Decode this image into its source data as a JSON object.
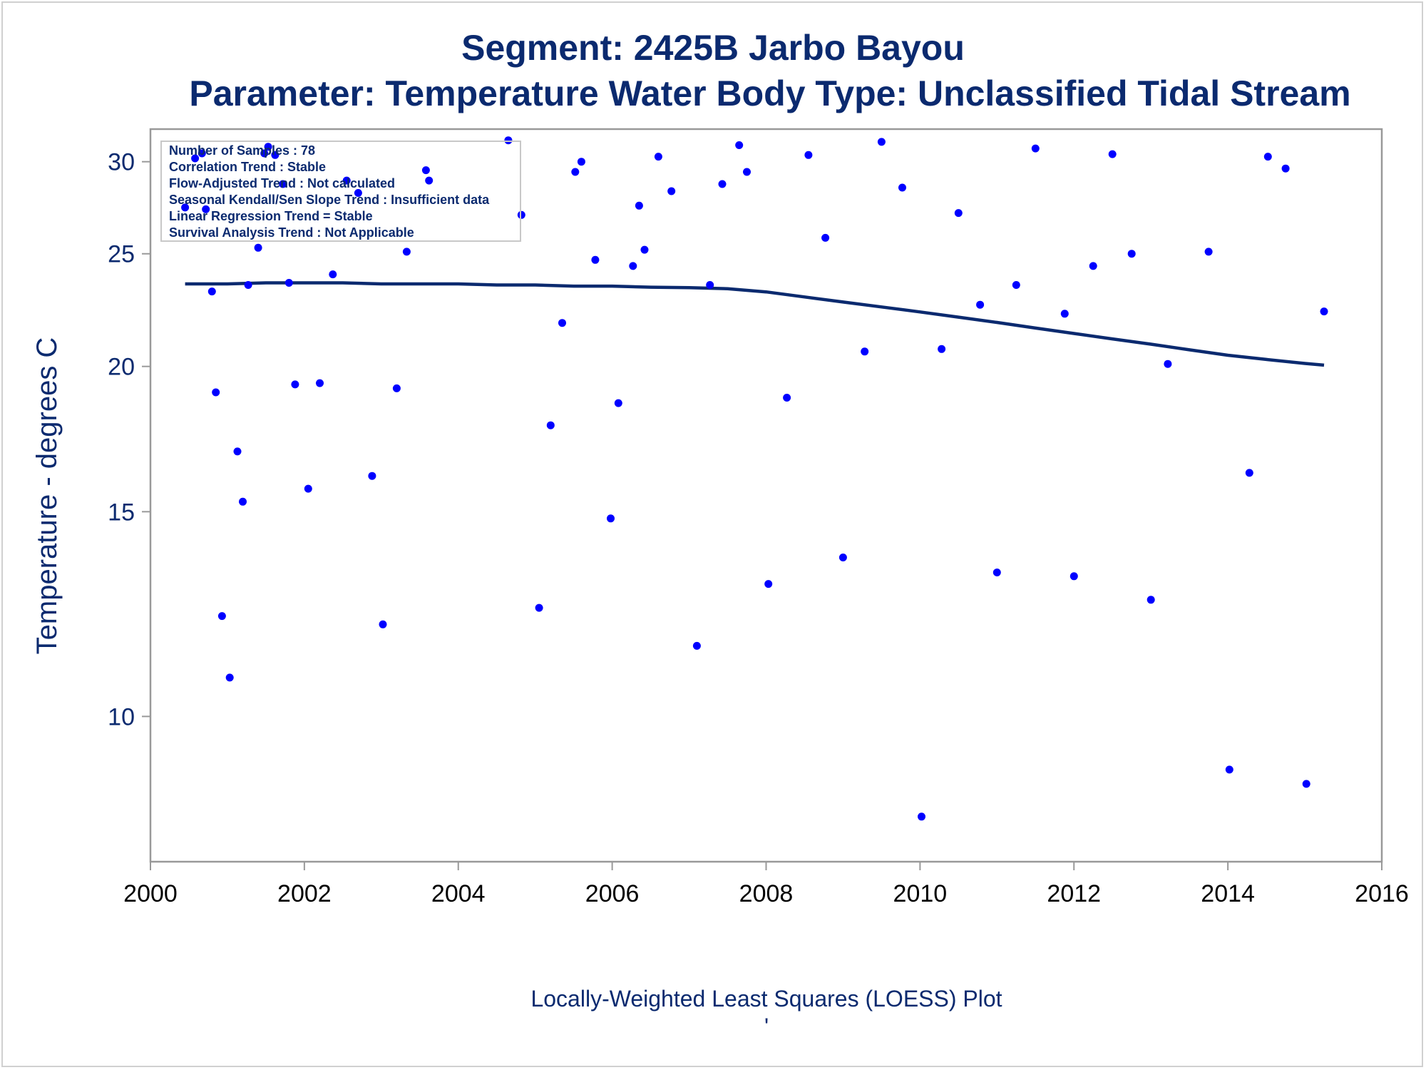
{
  "chart_data": {
    "type": "scatter",
    "title": "Segment: 2425B  Jarbo Bayou",
    "subtitle": "Parameter: Temperature   Water Body Type: Unclassified Tidal Stream",
    "xlabel": "Locally-Weighted Least Squares (LOESS) Plot",
    "ylabel": "Temperature - degrees C",
    "footnote": "'",
    "y_scale": "log",
    "xlim": [
      2000,
      2016
    ],
    "ylim": [
      7.5,
      32
    ],
    "x_ticks": [
      "2000",
      "2002",
      "2004",
      "2006",
      "2008",
      "2010",
      "2012",
      "2014",
      "2016"
    ],
    "x_tick_values": [
      2000,
      2002,
      2004,
      2006,
      2008,
      2010,
      2012,
      2014,
      2016
    ],
    "y_ticks": [
      "10",
      "15",
      "20",
      "25",
      "30"
    ],
    "y_tick_values": [
      10,
      15,
      20,
      25,
      30
    ],
    "grid": false,
    "legend_placement": "top-left",
    "annotation_lines": [
      "Number of Samples : 78",
      "Correlation Trend : Stable",
      "Flow-Adjusted Trend : Not calculated",
      "Seasonal Kendall/Sen Slope Trend : Insufficient data",
      "Linear Regression Trend = Stable",
      "Survival Analysis Trend : Not Applicable"
    ],
    "colors": {
      "points": "#0000ff",
      "loess": "#0b2a6f",
      "text": "#0b2a6f",
      "axis": "#999999"
    },
    "series": [
      {
        "kind": "points",
        "points": [
          [
            2000.45,
            27.4
          ],
          [
            2000.58,
            30.2
          ],
          [
            2000.67,
            30.5
          ],
          [
            2000.72,
            27.3
          ],
          [
            2000.8,
            23.2
          ],
          [
            2000.85,
            19.0
          ],
          [
            2000.93,
            12.2
          ],
          [
            2001.03,
            10.8
          ],
          [
            2001.13,
            16.9
          ],
          [
            2001.2,
            15.3
          ],
          [
            2001.27,
            23.5
          ],
          [
            2001.4,
            25.3
          ],
          [
            2001.48,
            30.5
          ],
          [
            2001.53,
            30.9
          ],
          [
            2001.62,
            30.4
          ],
          [
            2001.72,
            28.7
          ],
          [
            2001.8,
            23.6
          ],
          [
            2001.88,
            19.3
          ],
          [
            2002.05,
            15.7
          ],
          [
            2002.2,
            19.35
          ],
          [
            2002.37,
            24.0
          ],
          [
            2002.55,
            28.9
          ],
          [
            2002.7,
            28.2
          ],
          [
            2002.88,
            16.1
          ],
          [
            2003.02,
            12.0
          ],
          [
            2003.2,
            19.15
          ],
          [
            2003.33,
            25.1
          ],
          [
            2003.58,
            29.5
          ],
          [
            2003.62,
            28.9
          ],
          [
            2004.65,
            31.3
          ],
          [
            2004.82,
            27.0
          ],
          [
            2005.05,
            12.4
          ],
          [
            2005.2,
            17.8
          ],
          [
            2005.35,
            21.8
          ],
          [
            2005.52,
            29.4
          ],
          [
            2005.6,
            30.0
          ],
          [
            2005.78,
            24.7
          ],
          [
            2005.98,
            14.8
          ],
          [
            2006.08,
            18.6
          ],
          [
            2006.27,
            24.4
          ],
          [
            2006.35,
            27.5
          ],
          [
            2006.42,
            25.2
          ],
          [
            2006.6,
            30.3
          ],
          [
            2006.77,
            28.3
          ],
          [
            2007.1,
            11.5
          ],
          [
            2007.27,
            23.5
          ],
          [
            2007.43,
            28.7
          ],
          [
            2007.65,
            31.0
          ],
          [
            2007.75,
            29.4
          ],
          [
            2008.03,
            13.0
          ],
          [
            2008.27,
            18.8
          ],
          [
            2008.55,
            30.4
          ],
          [
            2008.77,
            25.8
          ],
          [
            2009.0,
            13.7
          ],
          [
            2009.28,
            20.6
          ],
          [
            2009.5,
            31.2
          ],
          [
            2009.77,
            28.5
          ],
          [
            2010.02,
            8.2
          ],
          [
            2010.28,
            20.7
          ],
          [
            2010.5,
            27.1
          ],
          [
            2010.78,
            22.6
          ],
          [
            2011.0,
            13.3
          ],
          [
            2011.25,
            23.5
          ],
          [
            2011.5,
            30.8
          ],
          [
            2011.88,
            22.2
          ],
          [
            2012.0,
            13.2
          ],
          [
            2012.25,
            24.4
          ],
          [
            2012.5,
            30.45
          ],
          [
            2012.75,
            25.0
          ],
          [
            2013.0,
            12.6
          ],
          [
            2013.22,
            20.1
          ],
          [
            2013.75,
            25.1
          ],
          [
            2014.02,
            9.0
          ],
          [
            2014.28,
            16.2
          ],
          [
            2014.52,
            30.3
          ],
          [
            2014.75,
            29.6
          ],
          [
            2015.02,
            8.75
          ],
          [
            2015.25,
            22.3
          ]
        ]
      },
      {
        "kind": "loess",
        "points": [
          [
            2000.45,
            23.55
          ],
          [
            2001.0,
            23.55
          ],
          [
            2001.5,
            23.6
          ],
          [
            2002.0,
            23.6
          ],
          [
            2002.5,
            23.6
          ],
          [
            2003.0,
            23.55
          ],
          [
            2003.5,
            23.55
          ],
          [
            2004.0,
            23.55
          ],
          [
            2004.5,
            23.5
          ],
          [
            2005.0,
            23.5
          ],
          [
            2005.5,
            23.45
          ],
          [
            2006.0,
            23.45
          ],
          [
            2006.5,
            23.4
          ],
          [
            2007.0,
            23.38
          ],
          [
            2007.5,
            23.33
          ],
          [
            2008.0,
            23.18
          ],
          [
            2008.5,
            22.95
          ],
          [
            2009.0,
            22.72
          ],
          [
            2009.5,
            22.5
          ],
          [
            2010.0,
            22.28
          ],
          [
            2010.5,
            22.05
          ],
          [
            2011.0,
            21.82
          ],
          [
            2011.5,
            21.58
          ],
          [
            2012.0,
            21.35
          ],
          [
            2012.5,
            21.12
          ],
          [
            2013.0,
            20.9
          ],
          [
            2013.5,
            20.67
          ],
          [
            2014.0,
            20.45
          ],
          [
            2014.5,
            20.28
          ],
          [
            2015.0,
            20.12
          ],
          [
            2015.25,
            20.05
          ]
        ]
      }
    ]
  }
}
